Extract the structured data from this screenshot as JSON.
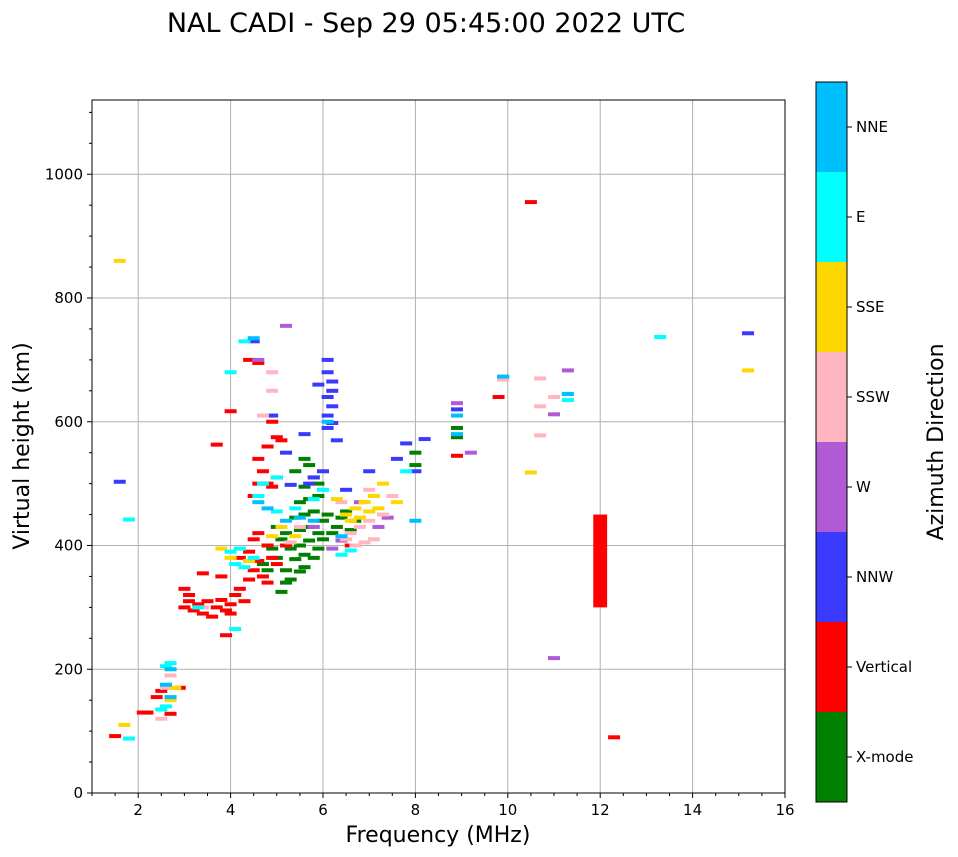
{
  "chart_data": {
    "type": "scatter",
    "title": "NAL CADI - Sep 29 05:45:00 2022 UTC",
    "xlabel": "Frequency (MHz)",
    "ylabel": "Virtual height (km)",
    "xlim": [
      1,
      16
    ],
    "ylim": [
      0,
      1120
    ],
    "xticks": [
      2,
      4,
      6,
      8,
      10,
      12,
      14,
      16
    ],
    "yticks": [
      0,
      200,
      400,
      600,
      800,
      1000
    ],
    "grid": true,
    "colorbar": {
      "title": "Azimuth Direction",
      "categories": [
        {
          "name": "X-mode",
          "color": "#008000"
        },
        {
          "name": "Vertical",
          "color": "#ff0000"
        },
        {
          "name": "NNW",
          "color": "#3a3aff"
        },
        {
          "name": "W",
          "color": "#b05ad6"
        },
        {
          "name": "SSW",
          "color": "#ffb6c1"
        },
        {
          "name": "SSE",
          "color": "#ffd700"
        },
        {
          "name": "E",
          "color": "#00ffff"
        },
        {
          "name": "NNE",
          "color": "#00bfff"
        }
      ]
    },
    "series": [
      {
        "name": "X-mode",
        "points": [
          [
            5.1,
            325
          ],
          [
            5.2,
            340
          ],
          [
            5.3,
            345
          ],
          [
            5.2,
            360
          ],
          [
            5.5,
            358
          ],
          [
            5.6,
            365
          ],
          [
            5.4,
            378
          ],
          [
            5.6,
            385
          ],
          [
            5.8,
            380
          ],
          [
            5.3,
            395
          ],
          [
            5.5,
            400
          ],
          [
            5.7,
            408
          ],
          [
            5.9,
            395
          ],
          [
            5.2,
            420
          ],
          [
            5.5,
            425
          ],
          [
            5.7,
            430
          ],
          [
            5.9,
            420
          ],
          [
            6.0,
            410
          ],
          [
            5.4,
            445
          ],
          [
            5.6,
            450
          ],
          [
            5.8,
            455
          ],
          [
            6.0,
            440
          ],
          [
            5.5,
            470
          ],
          [
            5.7,
            475
          ],
          [
            5.9,
            480
          ],
          [
            5.6,
            495
          ],
          [
            5.9,
            500
          ],
          [
            5.8,
            510
          ],
          [
            4.8,
            360
          ],
          [
            4.7,
            370
          ],
          [
            5.0,
            380
          ],
          [
            4.9,
            395
          ],
          [
            5.1,
            410
          ],
          [
            5.0,
            430
          ],
          [
            6.2,
            420
          ],
          [
            6.3,
            430
          ],
          [
            6.4,
            445
          ],
          [
            6.1,
            450
          ],
          [
            6.6,
            425
          ],
          [
            6.5,
            455
          ],
          [
            6.7,
            440
          ],
          [
            5.4,
            520
          ],
          [
            5.7,
            530
          ],
          [
            5.6,
            540
          ],
          [
            8.0,
            550
          ],
          [
            8.9,
            575
          ],
          [
            8.9,
            590
          ],
          [
            8.0,
            530
          ]
        ]
      },
      {
        "name": "Vertical",
        "points": [
          [
            1.5,
            92
          ],
          [
            2.2,
            130
          ],
          [
            2.4,
            155
          ],
          [
            2.5,
            165
          ],
          [
            2.7,
            128
          ],
          [
            2.9,
            170
          ],
          [
            3.0,
            300
          ],
          [
            3.1,
            310
          ],
          [
            3.2,
            295
          ],
          [
            3.3,
            305
          ],
          [
            3.4,
            290
          ],
          [
            3.5,
            310
          ],
          [
            3.7,
            300
          ],
          [
            3.8,
            312
          ],
          [
            3.9,
            295
          ],
          [
            4.0,
            305
          ],
          [
            4.1,
            320
          ],
          [
            4.2,
            330
          ],
          [
            4.3,
            310
          ],
          [
            4.4,
            345
          ],
          [
            4.5,
            360
          ],
          [
            4.6,
            375
          ],
          [
            4.7,
            350
          ],
          [
            4.8,
            340
          ],
          [
            3.0,
            330
          ],
          [
            3.1,
            320
          ],
          [
            3.6,
            285
          ],
          [
            3.9,
            255
          ],
          [
            4.0,
            290
          ],
          [
            4.2,
            380
          ],
          [
            4.4,
            390
          ],
          [
            4.5,
            410
          ],
          [
            4.6,
            420
          ],
          [
            4.8,
            400
          ],
          [
            4.9,
            380
          ],
          [
            5.0,
            370
          ],
          [
            4.5,
            480
          ],
          [
            4.6,
            500
          ],
          [
            4.7,
            520
          ],
          [
            4.8,
            500
          ],
          [
            4.9,
            495
          ],
          [
            5.0,
            510
          ],
          [
            4.6,
            540
          ],
          [
            4.8,
            560
          ],
          [
            5.0,
            575
          ],
          [
            5.1,
            570
          ],
          [
            4.9,
            600
          ],
          [
            4.4,
            700
          ],
          [
            4.6,
            695
          ],
          [
            4.0,
            617
          ],
          [
            3.7,
            563
          ],
          [
            8.9,
            545
          ],
          [
            9.8,
            640
          ],
          [
            10.5,
            955
          ],
          [
            12.3,
            90
          ],
          [
            2.1,
            130
          ],
          [
            3.4,
            355
          ],
          [
            3.8,
            350
          ],
          [
            5.2,
            400
          ],
          [
            6.6,
            400
          ]
        ]
      },
      {
        "name": "NNW",
        "points": [
          [
            6.1,
            700
          ],
          [
            6.1,
            680
          ],
          [
            6.2,
            665
          ],
          [
            6.2,
            650
          ],
          [
            6.1,
            640
          ],
          [
            6.2,
            625
          ],
          [
            6.1,
            610
          ],
          [
            6.2,
            598
          ],
          [
            6.1,
            590
          ],
          [
            6.3,
            570
          ],
          [
            5.8,
            510
          ],
          [
            6.0,
            520
          ],
          [
            5.7,
            500
          ],
          [
            6.5,
            490
          ],
          [
            7.6,
            540
          ],
          [
            7.8,
            565
          ],
          [
            8.2,
            572
          ],
          [
            8.0,
            520
          ],
          [
            8.9,
            620
          ],
          [
            9.9,
            672
          ],
          [
            15.2,
            743
          ],
          [
            5.9,
            660
          ],
          [
            5.6,
            580
          ],
          [
            5.2,
            550
          ],
          [
            4.9,
            610
          ],
          [
            5.3,
            498
          ],
          [
            7.0,
            520
          ],
          [
            4.5,
            730
          ],
          [
            1.6,
            503
          ]
        ]
      },
      {
        "name": "W",
        "points": [
          [
            8.9,
            630
          ],
          [
            9.2,
            550
          ],
          [
            11.0,
            218
          ],
          [
            11.0,
            612
          ],
          [
            11.3,
            683
          ],
          [
            7.2,
            430
          ],
          [
            6.8,
            470
          ],
          [
            5.2,
            755
          ],
          [
            4.6,
            700
          ],
          [
            5.8,
            430
          ],
          [
            6.2,
            395
          ],
          [
            6.4,
            408
          ],
          [
            7.4,
            445
          ]
        ]
      },
      {
        "name": "SSW",
        "points": [
          [
            2.5,
            120
          ],
          [
            2.6,
            170
          ],
          [
            2.7,
            190
          ],
          [
            6.5,
            410
          ],
          [
            6.6,
            420
          ],
          [
            6.8,
            430
          ],
          [
            7.0,
            440
          ],
          [
            6.7,
            400
          ],
          [
            6.9,
            405
          ],
          [
            7.1,
            410
          ],
          [
            7.3,
            450
          ],
          [
            7.5,
            480
          ],
          [
            7.0,
            490
          ],
          [
            10.7,
            625
          ],
          [
            11.0,
            640
          ],
          [
            10.7,
            670
          ],
          [
            10.7,
            578
          ],
          [
            9.9,
            668
          ],
          [
            4.9,
            680
          ],
          [
            4.9,
            650
          ],
          [
            4.7,
            610
          ],
          [
            6.4,
            470
          ],
          [
            5.3,
            405
          ],
          [
            5.5,
            430
          ],
          [
            3.4,
            300
          ]
        ]
      },
      {
        "name": "SSE",
        "points": [
          [
            1.6,
            860
          ],
          [
            1.7,
            110
          ],
          [
            2.8,
            170
          ],
          [
            2.7,
            150
          ],
          [
            3.8,
            395
          ],
          [
            4.0,
            380
          ],
          [
            4.4,
            375
          ],
          [
            6.5,
            450
          ],
          [
            6.7,
            460
          ],
          [
            6.9,
            470
          ],
          [
            7.1,
            480
          ],
          [
            7.3,
            500
          ],
          [
            7.6,
            470
          ],
          [
            6.8,
            445
          ],
          [
            7.0,
            455
          ],
          [
            7.2,
            460
          ],
          [
            6.6,
            440
          ],
          [
            6.3,
            475
          ],
          [
            10.5,
            518
          ],
          [
            15.2,
            683
          ],
          [
            5.1,
            430
          ],
          [
            5.4,
            415
          ],
          [
            4.9,
            415
          ]
        ]
      },
      {
        "name": "E",
        "points": [
          [
            1.8,
            88
          ],
          [
            1.8,
            442
          ],
          [
            2.5,
            135
          ],
          [
            2.6,
            140
          ],
          [
            2.7,
            210
          ],
          [
            2.6,
            205
          ],
          [
            3.3,
            300
          ],
          [
            4.0,
            680
          ],
          [
            4.3,
            730
          ],
          [
            4.2,
            395
          ],
          [
            4.0,
            390
          ],
          [
            4.1,
            370
          ],
          [
            4.3,
            365
          ],
          [
            4.5,
            380
          ],
          [
            4.7,
            500
          ],
          [
            4.6,
            480
          ],
          [
            5.0,
            455
          ],
          [
            5.4,
            460
          ],
          [
            5.8,
            475
          ],
          [
            6.0,
            490
          ],
          [
            6.4,
            385
          ],
          [
            6.6,
            392
          ],
          [
            7.8,
            520
          ],
          [
            11.3,
            635
          ],
          [
            11.3,
            645
          ],
          [
            13.3,
            737
          ],
          [
            4.1,
            265
          ],
          [
            5.0,
            510
          ]
        ]
      },
      {
        "name": "NNE",
        "points": [
          [
            2.7,
            155
          ],
          [
            2.6,
            175
          ],
          [
            2.7,
            200
          ],
          [
            4.5,
            735
          ],
          [
            4.6,
            470
          ],
          [
            4.8,
            460
          ],
          [
            5.2,
            440
          ],
          [
            5.5,
            445
          ],
          [
            6.1,
            600
          ],
          [
            8.9,
            610
          ],
          [
            8.9,
            580
          ],
          [
            8.0,
            440
          ],
          [
            9.9,
            673
          ],
          [
            11.3,
            645
          ],
          [
            5.8,
            440
          ],
          [
            6.4,
            415
          ]
        ]
      }
    ]
  }
}
